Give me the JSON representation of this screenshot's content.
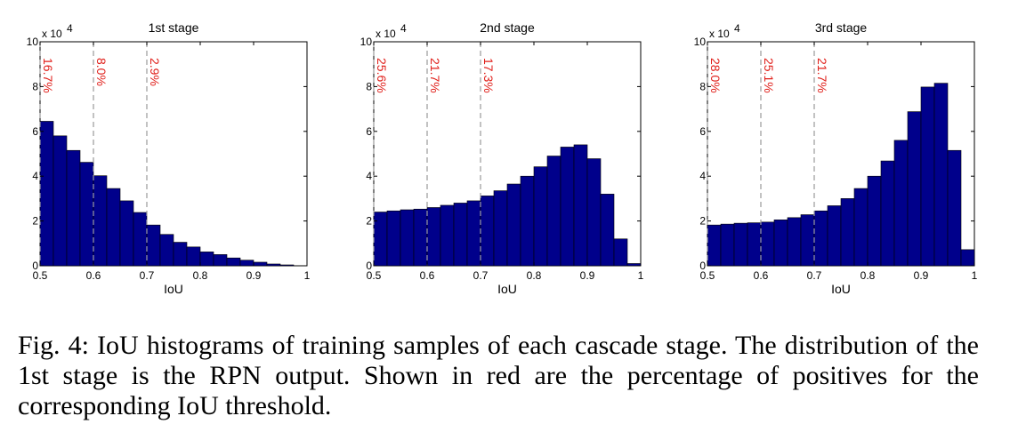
{
  "chart_data": [
    {
      "type": "bar",
      "title": "1st stage",
      "xlabel": "IoU",
      "ylabel": "",
      "y_scale_label": "x 10",
      "y_scale_exp": "4",
      "xlim": [
        0.5,
        1.0
      ],
      "ylim": [
        0,
        10
      ],
      "x_ticks": [
        "0.5",
        "0.6",
        "0.7",
        "0.8",
        "0.9",
        "1"
      ],
      "y_ticks": [
        "0",
        "2",
        "4",
        "6",
        "8",
        "10"
      ],
      "bin_width": 0.025,
      "bin_starts": [
        0.5,
        0.525,
        0.55,
        0.575,
        0.6,
        0.625,
        0.65,
        0.675,
        0.7,
        0.725,
        0.75,
        0.775,
        0.8,
        0.825,
        0.85,
        0.875,
        0.9,
        0.925,
        0.95,
        0.975
      ],
      "values": [
        6.45,
        5.8,
        5.15,
        4.62,
        4.02,
        3.45,
        2.9,
        2.38,
        1.82,
        1.4,
        1.05,
        0.84,
        0.62,
        0.5,
        0.35,
        0.25,
        0.16,
        0.08,
        0.04,
        0.0
      ],
      "thresholds": [
        0.5,
        0.6,
        0.7
      ],
      "threshold_labels": [
        "16.7%",
        "8.0%",
        "2.9%"
      ]
    },
    {
      "type": "bar",
      "title": "2nd stage",
      "xlabel": "IoU",
      "ylabel": "",
      "y_scale_label": "x 10",
      "y_scale_exp": "4",
      "xlim": [
        0.5,
        1.0
      ],
      "ylim": [
        0,
        10
      ],
      "x_ticks": [
        "0.5",
        "0.6",
        "0.7",
        "0.8",
        "0.9",
        "1"
      ],
      "y_ticks": [
        "0",
        "2",
        "4",
        "6",
        "8",
        "10"
      ],
      "bin_width": 0.025,
      "bin_starts": [
        0.5,
        0.525,
        0.55,
        0.575,
        0.6,
        0.625,
        0.65,
        0.675,
        0.7,
        0.725,
        0.75,
        0.775,
        0.8,
        0.825,
        0.85,
        0.875,
        0.9,
        0.925,
        0.95,
        0.975
      ],
      "values": [
        2.4,
        2.45,
        2.5,
        2.53,
        2.6,
        2.7,
        2.8,
        2.9,
        3.12,
        3.35,
        3.65,
        4.0,
        4.42,
        4.9,
        5.3,
        5.4,
        4.78,
        3.2,
        1.2,
        0.1
      ],
      "thresholds": [
        0.5,
        0.6,
        0.7
      ],
      "threshold_labels": [
        "25.6%",
        "21.7%",
        "17.3%"
      ]
    },
    {
      "type": "bar",
      "title": "3rd stage",
      "xlabel": "IoU",
      "ylabel": "",
      "y_scale_label": "x 10",
      "y_scale_exp": "4",
      "xlim": [
        0.5,
        1.0
      ],
      "ylim": [
        0,
        10
      ],
      "x_ticks": [
        "0.5",
        "0.6",
        "0.7",
        "0.8",
        "0.9",
        "1"
      ],
      "y_ticks": [
        "0",
        "2",
        "4",
        "6",
        "8",
        "10"
      ],
      "bin_width": 0.025,
      "bin_starts": [
        0.5,
        0.525,
        0.55,
        0.575,
        0.6,
        0.625,
        0.65,
        0.675,
        0.7,
        0.725,
        0.75,
        0.775,
        0.8,
        0.825,
        0.85,
        0.875,
        0.9,
        0.925,
        0.95,
        0.975
      ],
      "values": [
        1.82,
        1.86,
        1.9,
        1.92,
        1.95,
        2.05,
        2.15,
        2.28,
        2.45,
        2.68,
        3.0,
        3.45,
        4.0,
        4.68,
        5.6,
        6.88,
        7.98,
        8.15,
        5.15,
        0.72
      ],
      "thresholds": [
        0.5,
        0.6,
        0.7
      ],
      "threshold_labels": [
        "28.0%",
        "25.1%",
        "21.7%"
      ]
    }
  ],
  "caption": "Fig. 4: IoU histograms of training samples of each cascade stage. The distribution of the 1st stage is the RPN output. Shown in red are the percentage of positives for the corresponding IoU threshold.",
  "colors": {
    "bar_fill": "#00008b",
    "bar_edge": "#000000",
    "threshold_line": "#9a9a9a",
    "threshold_text": "#e0201b"
  }
}
